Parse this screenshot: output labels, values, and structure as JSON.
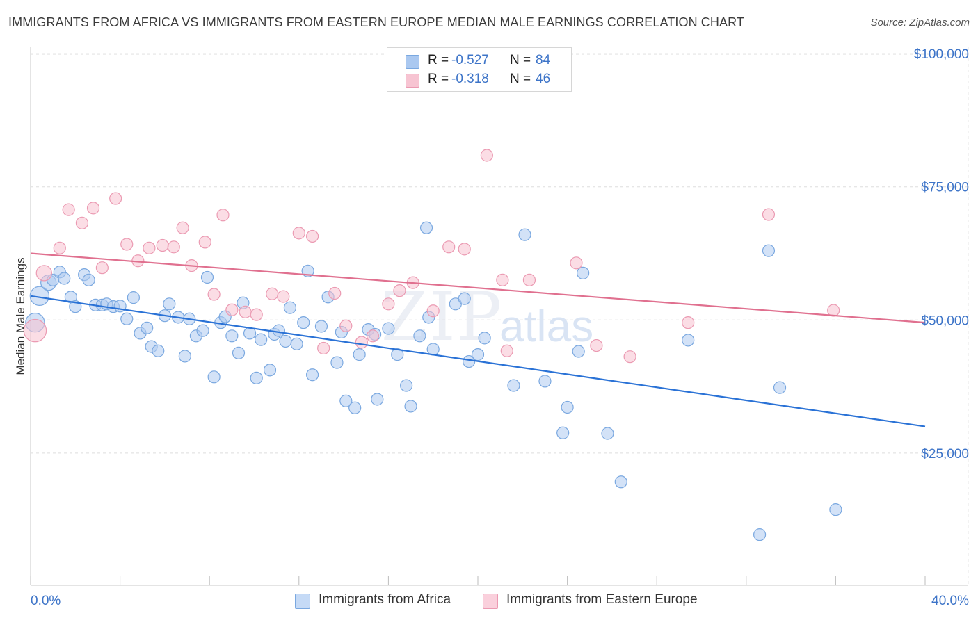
{
  "chart_data": {
    "type": "scatter",
    "title": "IMMIGRANTS FROM AFRICA VS IMMIGRANTS FROM EASTERN EUROPE MEDIAN MALE EARNINGS CORRELATION CHART",
    "source": "Source: ZipAtlas.com",
    "xlabel": "",
    "ylabel": "Median Male Earnings",
    "xlim": [
      0,
      40
    ],
    "ylim": [
      0,
      105000
    ],
    "x_tick_labels": {
      "min": "0.0%",
      "max": "40.0%"
    },
    "y_ticks": [
      {
        "value": 25000,
        "label": "$25,000"
      },
      {
        "value": 50000,
        "label": "$50,000"
      },
      {
        "value": 75000,
        "label": "$75,000"
      },
      {
        "value": 100000,
        "label": "$100,000"
      }
    ],
    "watermark": [
      "ZIP",
      "atlas"
    ],
    "legend": {
      "rows": [
        {
          "r_label": "R =",
          "r": "-0.527",
          "n_label": "N =",
          "n": "84",
          "color": "#aac8f0"
        },
        {
          "r_label": "R =",
          "r": "-0.318",
          "n_label": "N =",
          "n": "46",
          "color": "#f7b9cb"
        }
      ]
    },
    "series": [
      {
        "name": "Immigrants from Africa",
        "color": "#7aa8e0",
        "fill": "#aecbf0",
        "line_color": "#2a72d6",
        "trend": {
          "x": [
            0,
            40
          ],
          "y": [
            54500,
            30000
          ]
        },
        "points": [
          {
            "x": 0.4,
            "y": 54500,
            "s": 1.6
          },
          {
            "x": 0.2,
            "y": 49500,
            "s": 1.6
          },
          {
            "x": 0.8,
            "y": 57000,
            "s": 1.3
          },
          {
            "x": 1.0,
            "y": 57500,
            "s": 1
          },
          {
            "x": 1.3,
            "y": 59000,
            "s": 1
          },
          {
            "x": 1.5,
            "y": 57800,
            "s": 1
          },
          {
            "x": 1.8,
            "y": 54300,
            "s": 1
          },
          {
            "x": 2.0,
            "y": 52500,
            "s": 1
          },
          {
            "x": 2.4,
            "y": 58500,
            "s": 1
          },
          {
            "x": 2.6,
            "y": 57500,
            "s": 1
          },
          {
            "x": 2.9,
            "y": 52800,
            "s": 1
          },
          {
            "x": 3.2,
            "y": 52800,
            "s": 1
          },
          {
            "x": 3.4,
            "y": 53000,
            "s": 1
          },
          {
            "x": 3.7,
            "y": 52500,
            "s": 1
          },
          {
            "x": 4.0,
            "y": 52600,
            "s": 1
          },
          {
            "x": 4.3,
            "y": 50200,
            "s": 1
          },
          {
            "x": 4.6,
            "y": 54200,
            "s": 1
          },
          {
            "x": 4.9,
            "y": 47500,
            "s": 1
          },
          {
            "x": 5.2,
            "y": 48500,
            "s": 1
          },
          {
            "x": 5.4,
            "y": 45000,
            "s": 1
          },
          {
            "x": 5.7,
            "y": 44200,
            "s": 1
          },
          {
            "x": 6.0,
            "y": 50800,
            "s": 1
          },
          {
            "x": 6.2,
            "y": 53000,
            "s": 1
          },
          {
            "x": 6.6,
            "y": 50500,
            "s": 1
          },
          {
            "x": 6.9,
            "y": 43200,
            "s": 1
          },
          {
            "x": 7.1,
            "y": 50200,
            "s": 1
          },
          {
            "x": 7.4,
            "y": 47000,
            "s": 1
          },
          {
            "x": 7.7,
            "y": 48000,
            "s": 1
          },
          {
            "x": 7.9,
            "y": 58000,
            "s": 1
          },
          {
            "x": 8.2,
            "y": 39300,
            "s": 1
          },
          {
            "x": 8.5,
            "y": 49500,
            "s": 1
          },
          {
            "x": 8.7,
            "y": 50600,
            "s": 1
          },
          {
            "x": 9.0,
            "y": 47000,
            "s": 1
          },
          {
            "x": 9.3,
            "y": 43800,
            "s": 1
          },
          {
            "x": 9.5,
            "y": 53200,
            "s": 1
          },
          {
            "x": 9.8,
            "y": 47500,
            "s": 1
          },
          {
            "x": 10.1,
            "y": 39100,
            "s": 1
          },
          {
            "x": 10.3,
            "y": 46300,
            "s": 1
          },
          {
            "x": 10.7,
            "y": 40600,
            "s": 1
          },
          {
            "x": 10.9,
            "y": 47300,
            "s": 1
          },
          {
            "x": 11.1,
            "y": 48000,
            "s": 1
          },
          {
            "x": 11.4,
            "y": 46000,
            "s": 1
          },
          {
            "x": 11.6,
            "y": 52300,
            "s": 1
          },
          {
            "x": 11.9,
            "y": 45500,
            "s": 1
          },
          {
            "x": 12.2,
            "y": 49500,
            "s": 1
          },
          {
            "x": 12.4,
            "y": 59200,
            "s": 1
          },
          {
            "x": 12.6,
            "y": 39700,
            "s": 1
          },
          {
            "x": 13.0,
            "y": 48800,
            "s": 1
          },
          {
            "x": 13.3,
            "y": 54300,
            "s": 1
          },
          {
            "x": 13.7,
            "y": 42000,
            "s": 1
          },
          {
            "x": 13.9,
            "y": 47700,
            "s": 1
          },
          {
            "x": 14.1,
            "y": 34800,
            "s": 1
          },
          {
            "x": 14.5,
            "y": 33500,
            "s": 1
          },
          {
            "x": 14.7,
            "y": 43500,
            "s": 1
          },
          {
            "x": 15.1,
            "y": 48200,
            "s": 1
          },
          {
            "x": 15.4,
            "y": 47300,
            "s": 1
          },
          {
            "x": 15.5,
            "y": 35100,
            "s": 1
          },
          {
            "x": 16.0,
            "y": 48400,
            "s": 1
          },
          {
            "x": 16.4,
            "y": 43500,
            "s": 1
          },
          {
            "x": 16.8,
            "y": 37700,
            "s": 1
          },
          {
            "x": 17.0,
            "y": 33800,
            "s": 1
          },
          {
            "x": 17.4,
            "y": 47000,
            "s": 1
          },
          {
            "x": 17.8,
            "y": 50500,
            "s": 1
          },
          {
            "x": 17.7,
            "y": 67300,
            "s": 1
          },
          {
            "x": 18.0,
            "y": 44500,
            "s": 1
          },
          {
            "x": 19.0,
            "y": 53000,
            "s": 1
          },
          {
            "x": 19.4,
            "y": 54000,
            "s": 1
          },
          {
            "x": 19.6,
            "y": 42200,
            "s": 1
          },
          {
            "x": 20.0,
            "y": 43500,
            "s": 1
          },
          {
            "x": 20.3,
            "y": 46600,
            "s": 1
          },
          {
            "x": 21.6,
            "y": 37700,
            "s": 1
          },
          {
            "x": 22.1,
            "y": 66000,
            "s": 1
          },
          {
            "x": 23.0,
            "y": 38500,
            "s": 1
          },
          {
            "x": 24.0,
            "y": 33600,
            "s": 1
          },
          {
            "x": 23.8,
            "y": 28800,
            "s": 1
          },
          {
            "x": 24.5,
            "y": 44100,
            "s": 1
          },
          {
            "x": 24.7,
            "y": 58800,
            "s": 1
          },
          {
            "x": 25.8,
            "y": 28700,
            "s": 1
          },
          {
            "x": 26.4,
            "y": 19600,
            "s": 1
          },
          {
            "x": 29.4,
            "y": 46200,
            "s": 1
          },
          {
            "x": 32.6,
            "y": 9700,
            "s": 1
          },
          {
            "x": 33.0,
            "y": 63000,
            "s": 1
          },
          {
            "x": 33.5,
            "y": 37300,
            "s": 1
          },
          {
            "x": 36.0,
            "y": 14400,
            "s": 1
          }
        ]
      },
      {
        "name": "Immigrants from Eastern Europe",
        "color": "#eb9ab2",
        "fill": "#f8c1d0",
        "line_color": "#e0708f",
        "trend": {
          "x": [
            0,
            40
          ],
          "y": [
            62500,
            49500
          ]
        },
        "points": [
          {
            "x": 0.2,
            "y": 48000,
            "s": 1.9
          },
          {
            "x": 0.6,
            "y": 58800,
            "s": 1.3
          },
          {
            "x": 1.3,
            "y": 63500,
            "s": 1
          },
          {
            "x": 1.7,
            "y": 70700,
            "s": 1
          },
          {
            "x": 2.3,
            "y": 68200,
            "s": 1
          },
          {
            "x": 2.8,
            "y": 71000,
            "s": 1
          },
          {
            "x": 3.2,
            "y": 59800,
            "s": 1
          },
          {
            "x": 3.8,
            "y": 72800,
            "s": 1
          },
          {
            "x": 4.3,
            "y": 64200,
            "s": 1
          },
          {
            "x": 4.8,
            "y": 61100,
            "s": 1
          },
          {
            "x": 5.3,
            "y": 63500,
            "s": 1
          },
          {
            "x": 5.9,
            "y": 64000,
            "s": 1
          },
          {
            "x": 6.4,
            "y": 63700,
            "s": 1
          },
          {
            "x": 6.8,
            "y": 67300,
            "s": 1
          },
          {
            "x": 7.2,
            "y": 60200,
            "s": 1
          },
          {
            "x": 7.8,
            "y": 64600,
            "s": 1
          },
          {
            "x": 8.2,
            "y": 54800,
            "s": 1
          },
          {
            "x": 8.6,
            "y": 69700,
            "s": 1
          },
          {
            "x": 9.0,
            "y": 51900,
            "s": 1
          },
          {
            "x": 9.6,
            "y": 51500,
            "s": 1
          },
          {
            "x": 10.1,
            "y": 51000,
            "s": 1
          },
          {
            "x": 10.8,
            "y": 54900,
            "s": 1
          },
          {
            "x": 11.3,
            "y": 54400,
            "s": 1
          },
          {
            "x": 12.0,
            "y": 66300,
            "s": 1
          },
          {
            "x": 12.6,
            "y": 65700,
            "s": 1
          },
          {
            "x": 13.1,
            "y": 44700,
            "s": 1
          },
          {
            "x": 13.6,
            "y": 55000,
            "s": 1
          },
          {
            "x": 14.1,
            "y": 48900,
            "s": 1
          },
          {
            "x": 14.8,
            "y": 45800,
            "s": 1
          },
          {
            "x": 15.3,
            "y": 47000,
            "s": 1
          },
          {
            "x": 16.0,
            "y": 53000,
            "s": 1
          },
          {
            "x": 16.5,
            "y": 55500,
            "s": 1
          },
          {
            "x": 17.1,
            "y": 57000,
            "s": 1
          },
          {
            "x": 18.0,
            "y": 51700,
            "s": 1
          },
          {
            "x": 18.7,
            "y": 63700,
            "s": 1
          },
          {
            "x": 19.4,
            "y": 63300,
            "s": 1
          },
          {
            "x": 20.4,
            "y": 80900,
            "s": 1
          },
          {
            "x": 21.1,
            "y": 57500,
            "s": 1
          },
          {
            "x": 21.3,
            "y": 44200,
            "s": 1
          },
          {
            "x": 22.3,
            "y": 57500,
            "s": 1
          },
          {
            "x": 24.4,
            "y": 60700,
            "s": 1
          },
          {
            "x": 25.3,
            "y": 45200,
            "s": 1
          },
          {
            "x": 26.8,
            "y": 43100,
            "s": 1
          },
          {
            "x": 29.4,
            "y": 49500,
            "s": 1
          },
          {
            "x": 33.0,
            "y": 69800,
            "s": 1
          },
          {
            "x": 35.9,
            "y": 51800,
            "s": 1
          }
        ]
      }
    ]
  }
}
